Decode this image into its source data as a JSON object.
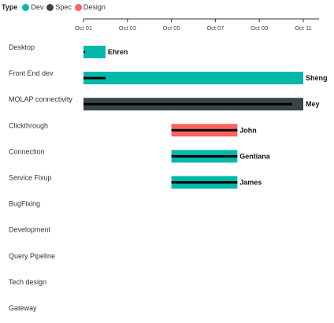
{
  "chart_data": {
    "type": "gantt",
    "legend": {
      "title": "Type",
      "placement": "top-left",
      "items": [
        {
          "name": "Dev",
          "color": "#01b8aa"
        },
        {
          "name": "Spec",
          "color": "#374649"
        },
        {
          "name": "Design",
          "color": "#fd625e"
        }
      ]
    },
    "x_ticks": [
      "Oct 01",
      "Oct 03",
      "Oct 05",
      "Oct 07",
      "Oct 09",
      "Oct 11"
    ],
    "x_range": [
      "Oct 01",
      "Oct 11"
    ],
    "tasks": [
      "Desktop",
      "Front End dev",
      "MOLAP connectivity",
      "Clickthrough",
      "Connection",
      "Service Fixup",
      "BugFixing",
      "Development",
      "Query Pipeline",
      "Tech design",
      "Gateway"
    ],
    "bars": [
      {
        "task": "Desktop",
        "start": "Oct 01",
        "end": "Oct 02",
        "type": "Dev",
        "resource": "Ehren",
        "progress": 0.05
      },
      {
        "task": "Front End dev",
        "start": "Oct 01",
        "end": "Oct 11",
        "type": "Dev",
        "resource": "Sheng",
        "progress": 0.1
      },
      {
        "task": "MOLAP connectivity",
        "start": "Oct 01",
        "end": "Oct 11",
        "type": "Spec",
        "resource": "Mey",
        "progress": 0.95
      },
      {
        "task": "Clickthrough",
        "start": "Oct 05",
        "end": "Oct 08",
        "type": "Design",
        "resource": "John",
        "progress": 1.0
      },
      {
        "task": "Connection",
        "start": "Oct 05",
        "end": "Oct 08",
        "type": "Dev",
        "resource": "Gentiana",
        "progress": 1.0
      },
      {
        "task": "Service Fixup",
        "start": "Oct 05",
        "end": "Oct 08",
        "type": "Dev",
        "resource": "James",
        "progress": 1.0
      }
    ],
    "grid": false
  }
}
